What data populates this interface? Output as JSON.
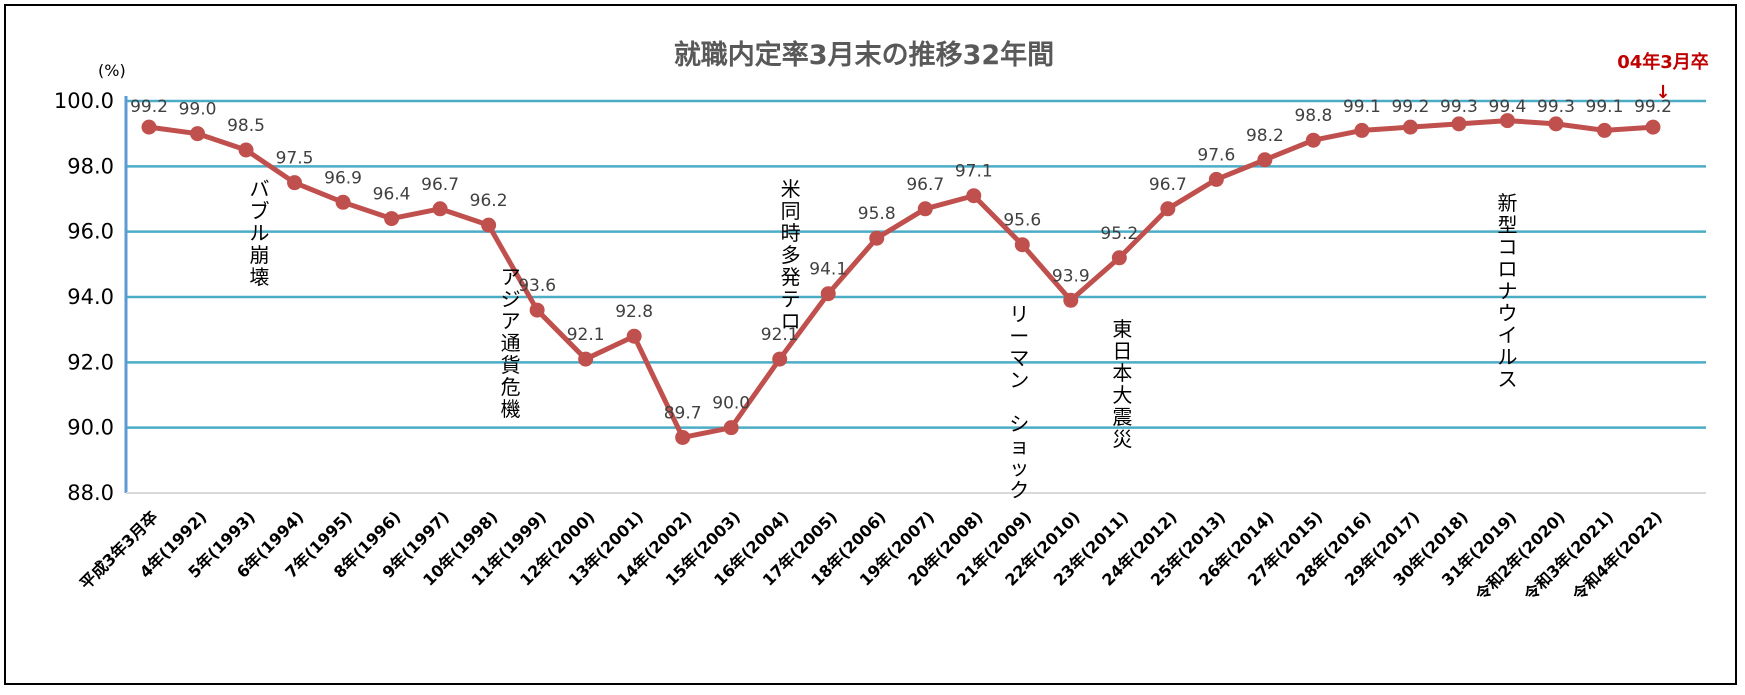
{
  "chart_data": {
    "type": "line",
    "title": "就職内定率3月末の推移32年間",
    "unit_label": "(%)",
    "xlabel": "",
    "ylabel": "",
    "ylim": [
      88.0,
      100.0
    ],
    "yticks": [
      "88.0",
      "90.0",
      "92.0",
      "94.0",
      "96.0",
      "98.0",
      "100.0"
    ],
    "grid": true,
    "legend": "none",
    "categories": [
      "平成3年3月卒",
      "4年(1992)",
      "5年(1993)",
      "6年(1994)",
      "7年(1995)",
      "8年(1996)",
      "9年(1997)",
      "10年(1998)",
      "11年(1999)",
      "12年(2000)",
      "13年(2001)",
      "14年(2002)",
      "15年(2003)",
      "16年(2004)",
      "17年(2005)",
      "18年(2006)",
      "19年(2007)",
      "20年(2008)",
      "21年(2009)",
      "22年(2010)",
      "23年(2011)",
      "24年(2012)",
      "25年(2013)",
      "26年(2014)",
      "27年(2015)",
      "28年(2016)",
      "29年(2017)",
      "30年(2018)",
      "31年(2019)",
      "令和2年(2020)",
      "令和3年(2021)",
      "令和4年(2022)"
    ],
    "series": [
      {
        "values": [
          99.2,
          99.0,
          98.5,
          97.5,
          96.9,
          96.4,
          96.7,
          96.2,
          93.6,
          92.1,
          92.8,
          89.7,
          90.0,
          92.1,
          94.1,
          95.8,
          96.7,
          97.1,
          95.6,
          93.9,
          95.2,
          96.7,
          97.6,
          98.2,
          98.8,
          99.1,
          99.2,
          99.3,
          99.4,
          99.3,
          99.1,
          99.2
        ],
        "labels": [
          "99.2",
          "99.0",
          "98.5",
          "97.5",
          "96.9",
          "96.4",
          "96.7",
          "96.2",
          "93.6",
          "92.1",
          "92.8",
          "89.7",
          "90.0",
          "92.1",
          "94.1",
          "95.8",
          "96.7",
          "97.1",
          "95.6",
          "93.9",
          "95.2",
          "96.7",
          "97.6",
          "98.2",
          "98.8",
          "99.1",
          "99.2",
          "99.3",
          "99.4",
          "99.3",
          "99.1",
          "99.2"
        ],
        "color": "#c0504d"
      }
    ],
    "annotations": [
      {
        "text": "バブル崩壊",
        "index": 1
      },
      {
        "text": "アジア通貨危機",
        "index": 7
      },
      {
        "text": "米同時多発テロ",
        "index": 11
      },
      {
        "text": "リーマン ショック",
        "index": 18
      },
      {
        "text": "東日本大震災",
        "index": 20
      },
      {
        "text": "新型コロナウイルス",
        "index": 28
      }
    ],
    "latest_marker": {
      "text": "04年3月卒",
      "arrow": "↓"
    },
    "colors": {
      "grid": "#4bacc6",
      "axis": "#5b9bd5",
      "line": "#c0504d",
      "title": "#595959",
      "marker_text": "#c00000"
    }
  }
}
